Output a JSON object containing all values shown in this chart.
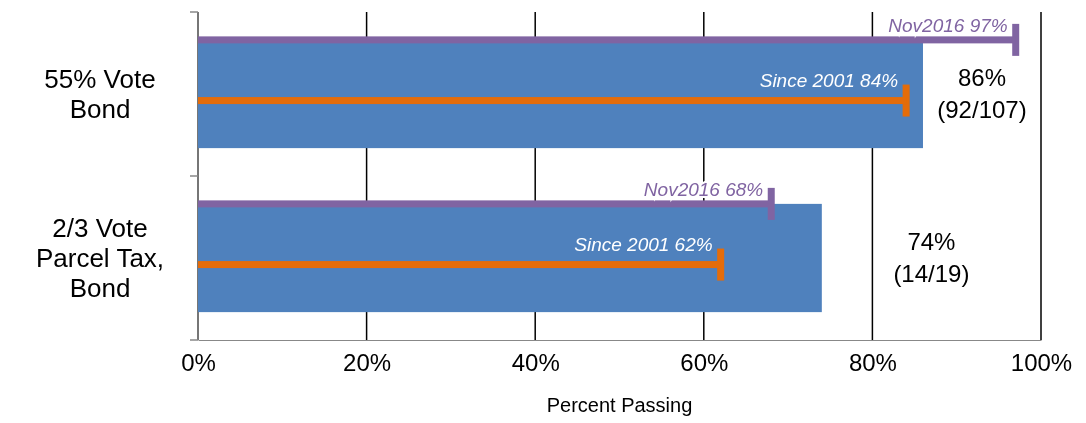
{
  "chart_data": {
    "type": "bar",
    "orientation": "horizontal",
    "xlabel": "Percent Passing",
    "categories": [
      "55% Vote\nBond",
      "2/3 Vote\nParcel Tax,\nBond"
    ],
    "series": [
      {
        "color": "#4f81bd",
        "values": [
          86,
          74
        ],
        "value_labels": [
          "86%\n(92/107)",
          "74%\n(14/19)"
        ]
      },
      {
        "name": "Nov2016",
        "color": "#8064a2",
        "values": [
          97,
          68
        ],
        "value_labels": [
          "97%",
          "68%"
        ]
      },
      {
        "name": "Since 2001",
        "color": "#e46c0a",
        "values": [
          84,
          62
        ],
        "value_labels": [
          "84%",
          "62%"
        ]
      }
    ],
    "xlim": [
      0,
      100
    ],
    "xticks": [
      {
        "value": 0,
        "label": "0%"
      },
      {
        "value": 20,
        "label": "20%"
      },
      {
        "value": 40,
        "label": "40%"
      },
      {
        "value": 60,
        "label": "60%"
      },
      {
        "value": 80,
        "label": "80%"
      },
      {
        "value": 100,
        "label": "100%"
      }
    ],
    "grid": "x"
  }
}
